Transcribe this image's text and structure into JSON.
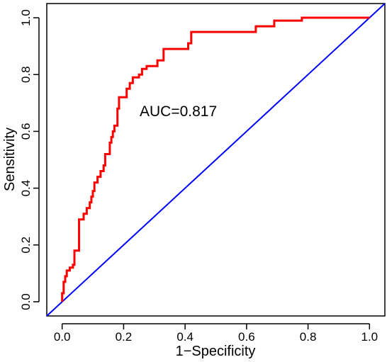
{
  "chart_data": {
    "type": "line",
    "xlabel": "1−Specificity",
    "ylabel": "Sensitivity",
    "xlim": [
      -0.05,
      1.05
    ],
    "ylim": [
      -0.05,
      1.05
    ],
    "xticks": [
      "0.0",
      "0.2",
      "0.4",
      "0.6",
      "0.8",
      "1.0"
    ],
    "yticks": [
      "0.0",
      "0.2",
      "0.4",
      "0.6",
      "0.8",
      "1.0"
    ],
    "annotation": "AUC=0.817",
    "grid": false,
    "colors": {
      "roc": "#ff0000",
      "reference": "#0000ff"
    },
    "series": [
      {
        "points": [
          [
            0.0,
            0.0
          ],
          [
            0.0,
            0.03
          ],
          [
            0.005,
            0.03
          ],
          [
            0.005,
            0.07
          ],
          [
            0.01,
            0.07
          ],
          [
            0.01,
            0.09
          ],
          [
            0.015,
            0.09
          ],
          [
            0.015,
            0.11
          ],
          [
            0.025,
            0.11
          ],
          [
            0.025,
            0.12
          ],
          [
            0.035,
            0.12
          ],
          [
            0.035,
            0.13
          ],
          [
            0.04,
            0.13
          ],
          [
            0.04,
            0.18
          ],
          [
            0.055,
            0.18
          ],
          [
            0.055,
            0.29
          ],
          [
            0.07,
            0.29
          ],
          [
            0.07,
            0.31
          ],
          [
            0.08,
            0.31
          ],
          [
            0.08,
            0.33
          ],
          [
            0.09,
            0.33
          ],
          [
            0.09,
            0.35
          ],
          [
            0.095,
            0.35
          ],
          [
            0.095,
            0.37
          ],
          [
            0.1,
            0.37
          ],
          [
            0.1,
            0.39
          ],
          [
            0.105,
            0.39
          ],
          [
            0.105,
            0.42
          ],
          [
            0.115,
            0.42
          ],
          [
            0.115,
            0.44
          ],
          [
            0.125,
            0.44
          ],
          [
            0.125,
            0.46
          ],
          [
            0.135,
            0.46
          ],
          [
            0.135,
            0.48
          ],
          [
            0.14,
            0.48
          ],
          [
            0.14,
            0.52
          ],
          [
            0.155,
            0.52
          ],
          [
            0.155,
            0.56
          ],
          [
            0.16,
            0.56
          ],
          [
            0.16,
            0.58
          ],
          [
            0.165,
            0.58
          ],
          [
            0.165,
            0.6
          ],
          [
            0.17,
            0.6
          ],
          [
            0.17,
            0.62
          ],
          [
            0.18,
            0.62
          ],
          [
            0.18,
            0.68
          ],
          [
            0.185,
            0.68
          ],
          [
            0.185,
            0.72
          ],
          [
            0.21,
            0.72
          ],
          [
            0.21,
            0.75
          ],
          [
            0.22,
            0.75
          ],
          [
            0.22,
            0.77
          ],
          [
            0.23,
            0.77
          ],
          [
            0.23,
            0.79
          ],
          [
            0.25,
            0.79
          ],
          [
            0.25,
            0.8
          ],
          [
            0.26,
            0.8
          ],
          [
            0.26,
            0.82
          ],
          [
            0.275,
            0.82
          ],
          [
            0.275,
            0.83
          ],
          [
            0.31,
            0.83
          ],
          [
            0.31,
            0.85
          ],
          [
            0.33,
            0.85
          ],
          [
            0.33,
            0.89
          ],
          [
            0.41,
            0.89
          ],
          [
            0.41,
            0.91
          ],
          [
            0.42,
            0.91
          ],
          [
            0.42,
            0.95
          ],
          [
            0.63,
            0.95
          ],
          [
            0.63,
            0.97
          ],
          [
            0.69,
            0.97
          ],
          [
            0.69,
            0.99
          ],
          [
            0.78,
            0.99
          ],
          [
            0.78,
            1.0
          ],
          [
            1.0,
            1.0
          ]
        ]
      },
      {
        "points": [
          [
            -0.05,
            -0.05
          ],
          [
            1.05,
            1.05
          ]
        ]
      }
    ]
  }
}
